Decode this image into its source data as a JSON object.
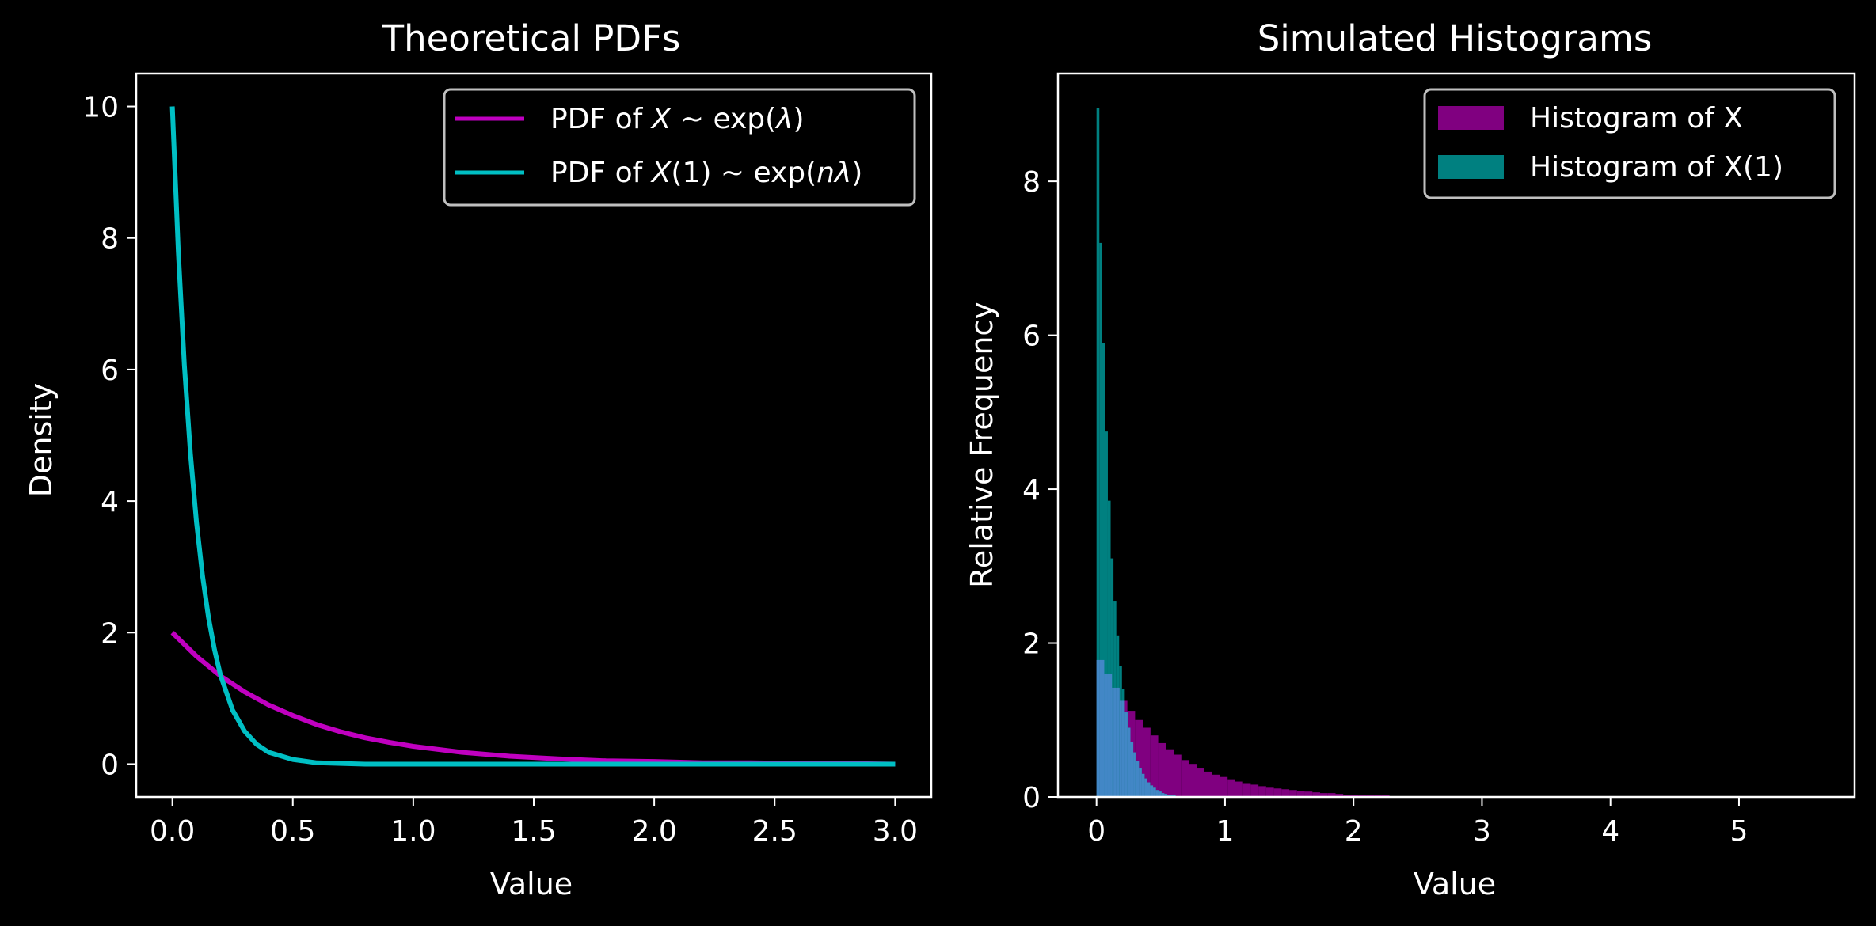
{
  "figure": {
    "background": "#000000",
    "foreground": "#ffffff"
  },
  "chart_data": [
    {
      "type": "line",
      "title": "Theoretical PDFs",
      "xlabel": "Value",
      "ylabel": "Density",
      "xlim": [
        -0.15,
        3.15
      ],
      "ylim": [
        -0.5,
        10.5
      ],
      "xticks": [
        0.0,
        0.5,
        1.0,
        1.5,
        2.0,
        2.5,
        3.0
      ],
      "xtick_labels": [
        "0.0",
        "0.5",
        "1.0",
        "1.5",
        "2.0",
        "2.5",
        "3.0"
      ],
      "yticks": [
        0,
        2,
        4,
        6,
        8,
        10
      ],
      "ytick_labels": [
        "0",
        "2",
        "4",
        "6",
        "8",
        "10"
      ],
      "grid": false,
      "legend_position": "top-right",
      "series": [
        {
          "name": "PDF of X ~ exp(λ)",
          "color": "#c000c0",
          "x": [
            0.0,
            0.1,
            0.2,
            0.3,
            0.4,
            0.5,
            0.6,
            0.7,
            0.8,
            0.9,
            1.0,
            1.2,
            1.4,
            1.6,
            1.8,
            2.0,
            2.2,
            2.4,
            2.6,
            2.8,
            3.0
          ],
          "y": [
            2.0,
            1.64,
            1.34,
            1.1,
            0.9,
            0.74,
            0.6,
            0.49,
            0.4,
            0.33,
            0.27,
            0.18,
            0.12,
            0.08,
            0.05,
            0.04,
            0.02,
            0.02,
            0.01,
            0.01,
            0.0
          ]
        },
        {
          "name": "PDF of X(1) ~ exp(nλ)",
          "color": "#00bfc4",
          "x": [
            0.0,
            0.025,
            0.05,
            0.075,
            0.1,
            0.125,
            0.15,
            0.175,
            0.2,
            0.25,
            0.3,
            0.35,
            0.4,
            0.5,
            0.6,
            0.7,
            0.8,
            1.0,
            1.5,
            2.0,
            2.5,
            3.0
          ],
          "y": [
            10.0,
            7.79,
            6.07,
            4.72,
            3.68,
            2.87,
            2.23,
            1.74,
            1.35,
            0.82,
            0.5,
            0.3,
            0.18,
            0.07,
            0.02,
            0.01,
            0.0,
            0.0,
            0.0,
            0.0,
            0.0,
            0.0
          ]
        }
      ]
    },
    {
      "type": "bar",
      "title": "Simulated Histograms",
      "xlabel": "Value",
      "ylabel": "Relative Frequency",
      "xlim": [
        -0.3,
        5.9
      ],
      "ylim": [
        0,
        9.4
      ],
      "xticks": [
        0,
        1,
        2,
        3,
        4,
        5
      ],
      "xtick_labels": [
        "0",
        "1",
        "2",
        "3",
        "4",
        "5"
      ],
      "yticks": [
        0,
        2,
        4,
        6,
        8
      ],
      "ytick_labels": [
        "0",
        "2",
        "4",
        "6",
        "8"
      ],
      "grid": false,
      "legend_position": "top-right",
      "overlap_color": "#4287c6",
      "series": [
        {
          "name": "Histogram of X",
          "color": "#800080",
          "bin_start": 0.0,
          "bin_width": 0.06,
          "values": [
            1.78,
            1.6,
            1.42,
            1.25,
            1.12,
            1.0,
            0.9,
            0.8,
            0.7,
            0.62,
            0.55,
            0.48,
            0.43,
            0.38,
            0.33,
            0.29,
            0.26,
            0.23,
            0.2,
            0.18,
            0.16,
            0.14,
            0.12,
            0.11,
            0.1,
            0.09,
            0.08,
            0.07,
            0.06,
            0.05,
            0.05,
            0.04,
            0.03,
            0.03,
            0.02,
            0.02,
            0.02,
            0.02,
            0.01,
            0.01
          ]
        },
        {
          "name": "Histogram of X(1)",
          "color": "#008080",
          "bin_start": 0.0,
          "bin_width": 0.022,
          "values": [
            8.95,
            7.2,
            5.9,
            4.75,
            3.85,
            3.1,
            2.55,
            2.1,
            1.7,
            1.4,
            1.1,
            0.9,
            0.72,
            0.58,
            0.47,
            0.38,
            0.3,
            0.24,
            0.19,
            0.15,
            0.12,
            0.09,
            0.07,
            0.05,
            0.04,
            0.03,
            0.02,
            0.02,
            0.01,
            0.01
          ]
        }
      ]
    }
  ]
}
